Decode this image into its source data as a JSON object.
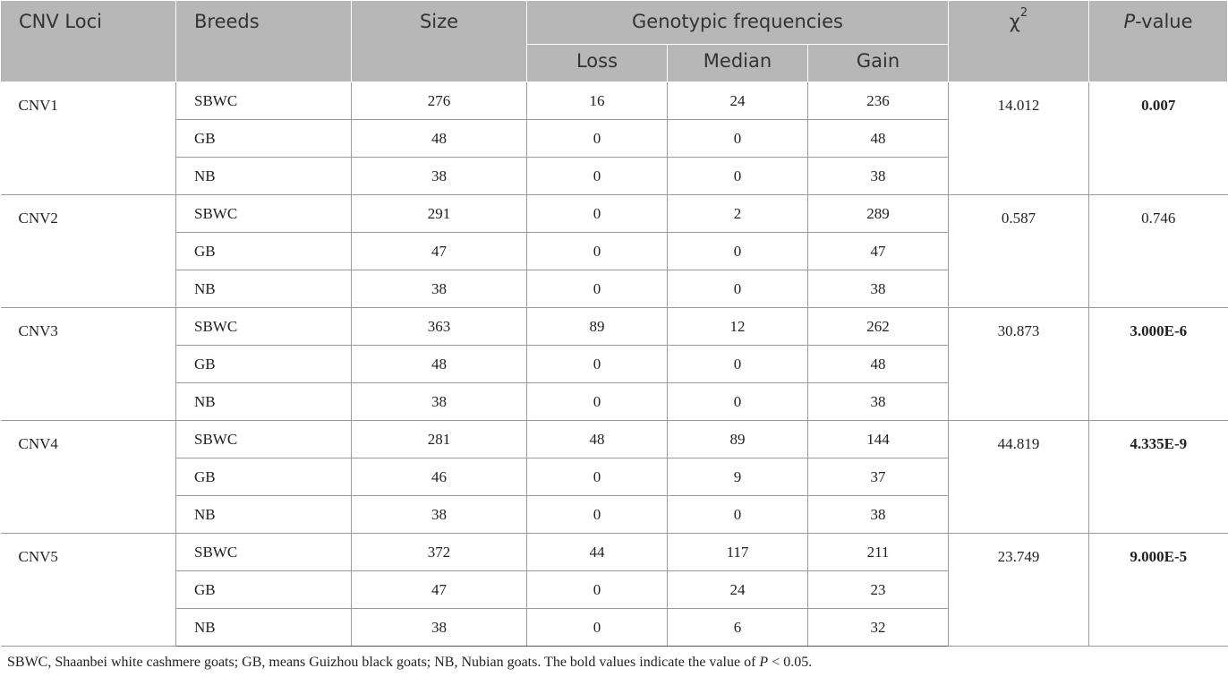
{
  "table": {
    "headers": {
      "loci": "CNV Loci",
      "breeds": "Breeds",
      "size": "Size",
      "genotypic": "Genotypic frequencies",
      "loss": "Loss",
      "median": "Median",
      "gain": "Gain",
      "chi": "χ",
      "chi_sup": "2",
      "pvalue_p": "P",
      "pvalue_rest": "-value"
    },
    "groups": [
      {
        "loci": "CNV1",
        "chi2": "14.012",
        "p_value": "0.007",
        "significant": true,
        "rows": [
          {
            "breed": "SBWC",
            "size": "276",
            "loss": "16",
            "median": "24",
            "gain": "236"
          },
          {
            "breed": "GB",
            "size": "48",
            "loss": "0",
            "median": "0",
            "gain": "48"
          },
          {
            "breed": "NB",
            "size": "38",
            "loss": "0",
            "median": "0",
            "gain": "38"
          }
        ]
      },
      {
        "loci": "CNV2",
        "chi2": "0.587",
        "p_value": "0.746",
        "significant": false,
        "rows": [
          {
            "breed": "SBWC",
            "size": "291",
            "loss": "0",
            "median": "2",
            "gain": "289"
          },
          {
            "breed": "GB",
            "size": "47",
            "loss": "0",
            "median": "0",
            "gain": "47"
          },
          {
            "breed": "NB",
            "size": "38",
            "loss": "0",
            "median": "0",
            "gain": "38"
          }
        ]
      },
      {
        "loci": "CNV3",
        "chi2": "30.873",
        "p_value": "3.000E-6",
        "significant": true,
        "rows": [
          {
            "breed": "SBWC",
            "size": "363",
            "loss": "89",
            "median": "12",
            "gain": "262"
          },
          {
            "breed": "GB",
            "size": "48",
            "loss": "0",
            "median": "0",
            "gain": "48"
          },
          {
            "breed": "NB",
            "size": "38",
            "loss": "0",
            "median": "0",
            "gain": "38"
          }
        ]
      },
      {
        "loci": "CNV4",
        "chi2": "44.819",
        "p_value": "4.335E-9",
        "significant": true,
        "rows": [
          {
            "breed": "SBWC",
            "size": "281",
            "loss": "48",
            "median": "89",
            "gain": "144"
          },
          {
            "breed": "GB",
            "size": "46",
            "loss": "0",
            "median": "9",
            "gain": "37"
          },
          {
            "breed": "NB",
            "size": "38",
            "loss": "0",
            "median": "0",
            "gain": "38"
          }
        ]
      },
      {
        "loci": "CNV5",
        "chi2": "23.749",
        "p_value": "9.000E-5",
        "significant": true,
        "rows": [
          {
            "breed": "SBWC",
            "size": "372",
            "loss": "44",
            "median": "117",
            "gain": "211"
          },
          {
            "breed": "GB",
            "size": "47",
            "loss": "0",
            "median": "24",
            "gain": "23"
          },
          {
            "breed": "NB",
            "size": "38",
            "loss": "0",
            "median": "6",
            "gain": "32"
          }
        ]
      }
    ]
  },
  "footnote": {
    "text": "SBWC, Shaanbei white cashmere goats; GB, means Guizhou black goats; NB, Nubian goats. The bold values indicate the value of ",
    "p": "P",
    "tail": " < 0.05."
  },
  "colors": {
    "header_bg": "#b7b7b7",
    "header_text": "#333333",
    "body_text": "#222222"
  }
}
